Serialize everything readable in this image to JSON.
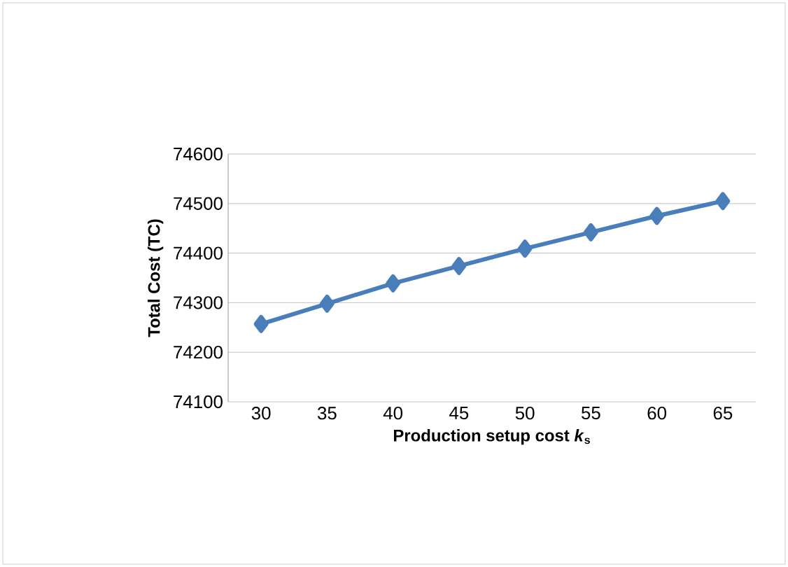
{
  "chart_data": {
    "type": "line",
    "xlabel": "Production setup cost *k*$_{s}$",
    "ylabel": "Total Cost (TC)",
    "categories": [
      "30",
      "35",
      "40",
      "45",
      "50",
      "55",
      "60",
      "65"
    ],
    "series": [
      {
        "color": "#4a7ebb",
        "values": [
          74257,
          74298,
          74339,
          74374,
          74409,
          74442,
          74475,
          74505
        ]
      }
    ],
    "ylim": [
      74100,
      74600
    ],
    "yticks": [
      74100,
      74200,
      74300,
      74400,
      74500,
      74600
    ],
    "grid": "y",
    "marker": "diamond",
    "line_style": "solid"
  }
}
